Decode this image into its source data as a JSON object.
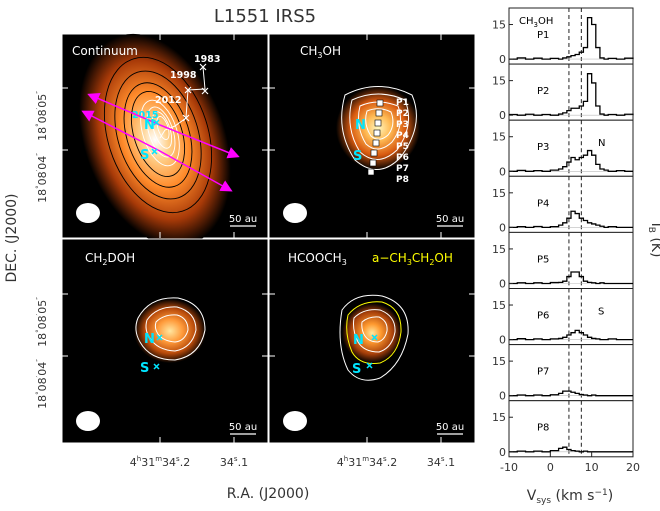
{
  "figure_title": "L1551 IRS5",
  "axis_labels": {
    "ra": "R.A. (J2000)",
    "dec": "DEC. (J2000)",
    "vsys_main": "V",
    "vsys_sub": "sys",
    "vsys_unit": " (km s",
    "vsys_exp": "−1",
    "vsys_close": ")",
    "tb_main": "I",
    "tb_sub": "B",
    "tb_unit": " (K)"
  },
  "dec_ticks": [
    "18°08′05″",
    "18°08′04″"
  ],
  "ra_ticks": [
    "4h31m34s.2",
    "34s.1"
  ],
  "ra_tick_parts": {
    "left": {
      "a": "4",
      "h": "h",
      "b": "31",
      "m": "m",
      "c": "34",
      "s": "s",
      "d": ".2"
    },
    "right": {
      "c": "34",
      "s": "s",
      "d": ".1"
    }
  },
  "dec_tick_parts": [
    {
      "d": "18",
      "deg": "°",
      "m": "08",
      "min": "′",
      "s": "05",
      "sec": "″"
    },
    {
      "d": "18",
      "deg": "°",
      "m": "08",
      "min": "′",
      "s": "04",
      "sec": "″"
    }
  ],
  "scale_bar": "50 au",
  "panels": [
    {
      "title": "Continuum",
      "title_sub": ""
    },
    {
      "title": "CH",
      "title_sub": "3",
      "title_end": "OH"
    },
    {
      "title": "CH",
      "title_sub": "2",
      "title_end": "DOH"
    },
    {
      "title": "HCOOCH",
      "title_sub": "3",
      "title_end": "",
      "title2": "a−CH",
      "title2_sub": "3",
      "title2_mid": "CH",
      "title2_sub2": "2",
      "title2_end": "OH"
    }
  ],
  "source_labels": {
    "north": "N",
    "south": "S"
  },
  "epochs": [
    "1983",
    "1998",
    "2012",
    "2015"
  ],
  "positions": [
    "P1",
    "P2",
    "P3",
    "P4",
    "P5",
    "P6",
    "P7",
    "P8"
  ],
  "spectra_title": {
    "a": "CH",
    "sub": "3",
    "b": "OH"
  },
  "spectra_tags": {
    "P3": "N",
    "P6": "S"
  },
  "colors": {
    "contour_white": "#ffffff",
    "contour_black": "#000000",
    "arrow": "#ff00ff",
    "source_marker": "#00e5ff",
    "ethanol_contour": "#ffff00"
  },
  "chart_data": {
    "type": "line",
    "title": "",
    "xlabel": "Vsys (km s−1)",
    "ylabel": "IB (K)",
    "xlim": [
      -10,
      20
    ],
    "ylim": [
      0,
      20
    ],
    "x_ticks": [
      -10,
      0,
      10,
      20
    ],
    "y_ticks": [
      0,
      15
    ],
    "reference_lines": [
      4.5,
      7.5
    ],
    "x": [
      -10,
      -8,
      -6,
      -4,
      -2,
      0,
      2,
      3,
      4,
      5,
      6,
      7,
      8,
      9,
      10,
      11,
      12,
      13,
      14,
      16,
      18,
      20
    ],
    "series": [
      {
        "name": "P1",
        "values": [
          0,
          0.5,
          0,
          0.4,
          0,
          0.3,
          0,
          0.5,
          1,
          1.5,
          2,
          3,
          5,
          18,
          15,
          5,
          0.5,
          0,
          0.3,
          0,
          0.4,
          0
        ]
      },
      {
        "name": "P2",
        "values": [
          0.3,
          0,
          0.4,
          0,
          0.3,
          0,
          0.5,
          1,
          2,
          3,
          3,
          4,
          6,
          18,
          14,
          4,
          0.5,
          0,
          0.3,
          0,
          0.4,
          0
        ]
      },
      {
        "name": "P3",
        "values": [
          0,
          0.4,
          0,
          0.3,
          0,
          0.5,
          1,
          2,
          4,
          6,
          5,
          6,
          7,
          9,
          7,
          3,
          1,
          0.5,
          0,
          0.3,
          0,
          0
        ]
      },
      {
        "name": "P4",
        "values": [
          0,
          0.3,
          0,
          0.4,
          0,
          0.3,
          1,
          2,
          4,
          7,
          6,
          4,
          3,
          2,
          1.5,
          1,
          0.5,
          0,
          0.3,
          0,
          0,
          0
        ]
      },
      {
        "name": "P5",
        "values": [
          0,
          0.3,
          0,
          0.3,
          0,
          0.4,
          0.5,
          1,
          3,
          5,
          5,
          3,
          1,
          0.5,
          0.3,
          0,
          0.3,
          0,
          0,
          0,
          0,
          0
        ]
      },
      {
        "name": "P6",
        "values": [
          0,
          0.4,
          0,
          0.3,
          0,
          0.3,
          0.5,
          1,
          2,
          3,
          4,
          3,
          2,
          1,
          0.5,
          0.3,
          0,
          0,
          0.3,
          0,
          0,
          0
        ]
      },
      {
        "name": "P7",
        "values": [
          0,
          0.3,
          0,
          0.3,
          0,
          0.4,
          1,
          2,
          2,
          1.5,
          1,
          0.5,
          0.3,
          0,
          0.3,
          0,
          0,
          0,
          0,
          0,
          0,
          0
        ]
      },
      {
        "name": "P8",
        "values": [
          0,
          0.3,
          0,
          0.3,
          0,
          0.5,
          1.5,
          2,
          1,
          0.5,
          0.3,
          0,
          0.3,
          0,
          0,
          0,
          0,
          0,
          0,
          0,
          0,
          0
        ]
      }
    ]
  }
}
